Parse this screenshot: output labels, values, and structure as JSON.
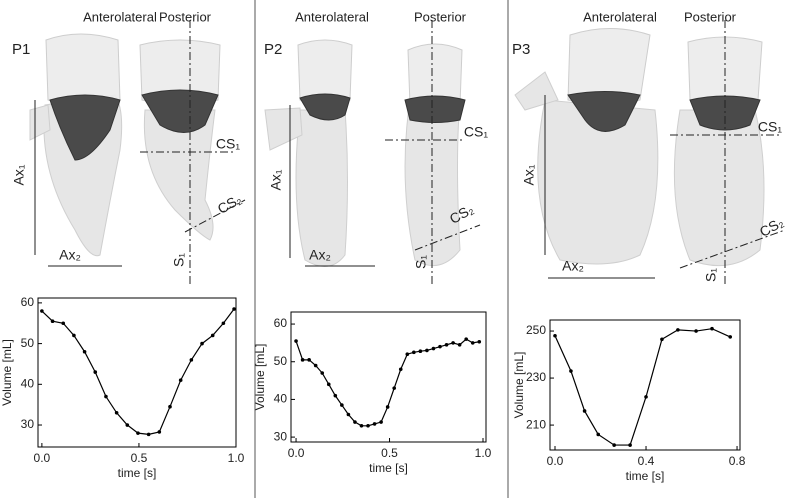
{
  "chart_data": [
    {
      "type": "line",
      "panel": "P1",
      "views": [
        "Anterolateral",
        "Posterior"
      ],
      "annotations": [
        "Ax₁",
        "Ax₂",
        "CS₁",
        "CS₂",
        "S₁"
      ],
      "xlabel": "time [s]",
      "ylabel": "Volume [mL]",
      "x": [
        0,
        0.055,
        0.11,
        0.165,
        0.22,
        0.275,
        0.33,
        0.385,
        0.44,
        0.495,
        0.55,
        0.605,
        0.66,
        0.715,
        0.77,
        0.825,
        0.88,
        0.935,
        0.99
      ],
      "values": [
        58,
        55.5,
        55,
        52,
        48,
        43,
        37,
        33,
        30,
        28,
        27.7,
        28.3,
        34.5,
        41,
        46,
        50,
        52,
        55,
        58.5
      ],
      "color": "#000000",
      "xlim": [
        -0.02,
        1.0
      ],
      "ylim": [
        24.6,
        61.2
      ],
      "xticks": [
        {
          "value": 0,
          "label": "0.0"
        },
        0.5,
        {
          "value": 1,
          "label": "1.0"
        }
      ],
      "yticks": [
        30,
        40,
        50,
        60
      ]
    },
    {
      "type": "line",
      "panel": "P2",
      "views": [
        "Anterolateral",
        "Posterior"
      ],
      "annotations": [
        "Ax₁",
        "Ax₂",
        "CS₁",
        "CS₂",
        "S₁"
      ],
      "xlabel": "time [s]",
      "ylabel": "Volume [mL]",
      "x": [
        0,
        0.035,
        0.07,
        0.105,
        0.14,
        0.175,
        0.21,
        0.245,
        0.28,
        0.315,
        0.35,
        0.385,
        0.42,
        0.455,
        0.49,
        0.525,
        0.56,
        0.595,
        0.63,
        0.665,
        0.7,
        0.735,
        0.77,
        0.805,
        0.84,
        0.875,
        0.91,
        0.945,
        0.98
      ],
      "values": [
        55.5,
        50.5,
        50.5,
        49,
        47,
        44,
        41,
        38.5,
        36,
        34,
        33,
        33,
        33.5,
        34,
        38,
        43,
        48,
        52,
        52.5,
        52.8,
        53,
        53.5,
        54,
        54.5,
        55,
        54.5,
        56,
        55,
        55.3
      ],
      "color": "#000000",
      "xlim": [
        -0.027,
        1.016
      ],
      "ylim": [
        28.7,
        63.2
      ],
      "xticks": [
        {
          "value": 0,
          "label": "0.0"
        },
        0.5,
        {
          "value": 1,
          "label": "1.0"
        }
      ],
      "yticks": [
        30,
        40,
        50,
        60
      ]
    },
    {
      "type": "line",
      "panel": "P3",
      "views": [
        "Anterolateral",
        "Posterior"
      ],
      "annotations": [
        "Ax₁",
        "Ax₂",
        "CS₁",
        "CS₂",
        "S₁"
      ],
      "xlabel": "time [s]",
      "ylabel": "Volume [mL]",
      "x": [
        0,
        0.07,
        0.13,
        0.19,
        0.26,
        0.33,
        0.4,
        0.47,
        0.54,
        0.62,
        0.69,
        0.77
      ],
      "values": [
        248,
        233,
        216,
        206,
        201.5,
        201.5,
        222,
        246.5,
        250.5,
        250,
        251,
        247.5
      ],
      "color": "#000000",
      "xlim": [
        -0.022,
        0.813
      ],
      "ylim": [
        199.4,
        254.7
      ],
      "xticks": [
        {
          "value": 0,
          "label": "0.0"
        },
        0.4,
        0.8
      ],
      "yticks": [
        210,
        230,
        250
      ]
    }
  ]
}
